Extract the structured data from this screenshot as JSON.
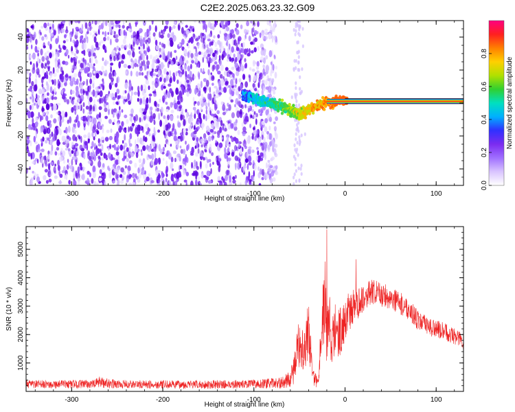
{
  "title": "C2E2.2025.063.23.32.G09",
  "chart_data": [
    {
      "type": "heatmap",
      "xlabel": "Height of straight line (km)",
      "ylabel": "Frequency (Hz)",
      "xlim": [
        -350,
        130
      ],
      "ylim": [
        -50,
        50
      ],
      "xticks": [
        -300,
        -200,
        -100,
        0,
        100
      ],
      "yticks": [
        -40,
        -20,
        0,
        20,
        40
      ],
      "colorbar": {
        "label": "Normalized spectral amplitude",
        "range": [
          0,
          1
        ],
        "ticks": [
          0.0,
          0.2,
          0.4,
          0.6,
          0.8
        ],
        "colormap": [
          "#ffffff",
          "#d9c4ff",
          "#a070ff",
          "#7b2cf0",
          "#3030ff",
          "#00b0ff",
          "#00e0c0",
          "#30d030",
          "#b0e000",
          "#ffd000",
          "#ff8000",
          "#ff2020",
          "#ff0080"
        ]
      },
      "noise_region_x": [
        -350,
        -75
      ],
      "signal_track": {
        "x": [
          -110,
          -100,
          -90,
          -80,
          -75,
          -70,
          -65,
          -60,
          -55,
          -50,
          -45,
          -40,
          -35,
          -30,
          -25,
          -20,
          -15,
          -10,
          -5,
          0,
          130
        ],
        "y": [
          4,
          3,
          1,
          -1,
          -1,
          -2,
          -3,
          -4,
          -6,
          -7,
          -6,
          -4,
          -3,
          -2,
          0,
          0,
          0,
          1,
          2,
          1,
          1
        ]
      }
    },
    {
      "type": "line",
      "xlabel": "Height of straight line (km)",
      "ylabel": "SNR (10 * v/v)",
      "xlim": [
        -350,
        130
      ],
      "ylim": [
        0,
        5800
      ],
      "xticks": [
        -300,
        -200,
        -100,
        0,
        100
      ],
      "yticks": [
        1000,
        2000,
        3000,
        4000,
        5000
      ],
      "color": "#ee2222",
      "envelope": {
        "x": [
          -350,
          -300,
          -275,
          -270,
          -250,
          -200,
          -150,
          -100,
          -70,
          -60,
          -55,
          -50,
          -45,
          -40,
          -35,
          -30,
          -25,
          -22,
          -20,
          -18,
          -15,
          -10,
          -5,
          0,
          5,
          10,
          20,
          30,
          40,
          50,
          60,
          70,
          80,
          90,
          100,
          110,
          120,
          130
        ],
        "mean": [
          250,
          250,
          260,
          330,
          250,
          240,
          240,
          260,
          300,
          450,
          900,
          1800,
          1500,
          2200,
          500,
          300,
          2500,
          3200,
          1800,
          3000,
          1500,
          2300,
          2100,
          2600,
          2800,
          3000,
          3300,
          3500,
          3400,
          3300,
          3100,
          2900,
          2500,
          2300,
          2200,
          2100,
          1950,
          1750
        ],
        "spread": [
          150,
          150,
          150,
          200,
          150,
          150,
          150,
          150,
          200,
          300,
          600,
          900,
          800,
          1000,
          300,
          200,
          1200,
          1500,
          1000,
          1200,
          900,
          1100,
          900,
          800,
          700,
          600,
          500,
          450,
          450,
          400,
          400,
          380,
          350,
          330,
          320,
          300,
          300,
          300
        ]
      },
      "peaks": [
        {
          "x": -20,
          "y": 5700
        },
        {
          "x": 12,
          "y": 4650
        }
      ]
    }
  ]
}
